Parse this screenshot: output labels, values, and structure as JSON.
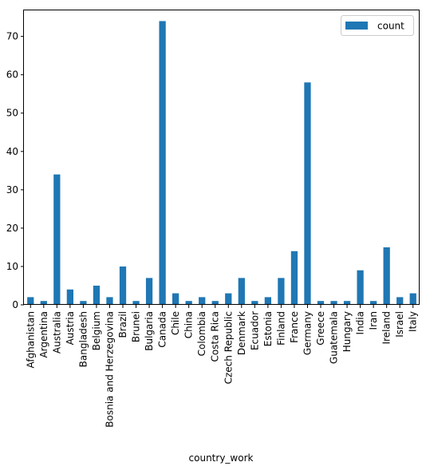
{
  "chart_data": {
    "type": "bar",
    "xlabel": "country_work",
    "ylabel": "",
    "ylim": [
      0,
      77
    ],
    "yticks": [
      0,
      10,
      20,
      30,
      40,
      50,
      60,
      70
    ],
    "grid": false,
    "legend_position": "top-right",
    "bar_color": "#1f77b4",
    "categories": [
      "Afghanistan",
      "Argentina",
      "Australia",
      "Austria",
      "Bangladesh",
      "Belgium",
      "Bosnia and Herzegovina",
      "Brazil",
      "Brunei",
      "Bulgaria",
      "Canada",
      "Chile",
      "China",
      "Colombia",
      "Costa Rica",
      "Czech Republic",
      "Denmark",
      "Ecuador",
      "Estonia",
      "Finland",
      "France",
      "Germany",
      "Greece",
      "Guatemala",
      "Hungary",
      "India",
      "Iran",
      "Ireland",
      "Israel",
      "Italy"
    ],
    "series": [
      {
        "name": "count",
        "values": [
          2,
          1,
          34,
          4,
          1,
          5,
          2,
          10,
          1,
          7,
          74,
          3,
          1,
          2,
          1,
          3,
          7,
          1,
          2,
          7,
          14,
          58,
          1,
          1,
          1,
          9,
          1,
          15,
          2,
          3
        ]
      }
    ]
  }
}
